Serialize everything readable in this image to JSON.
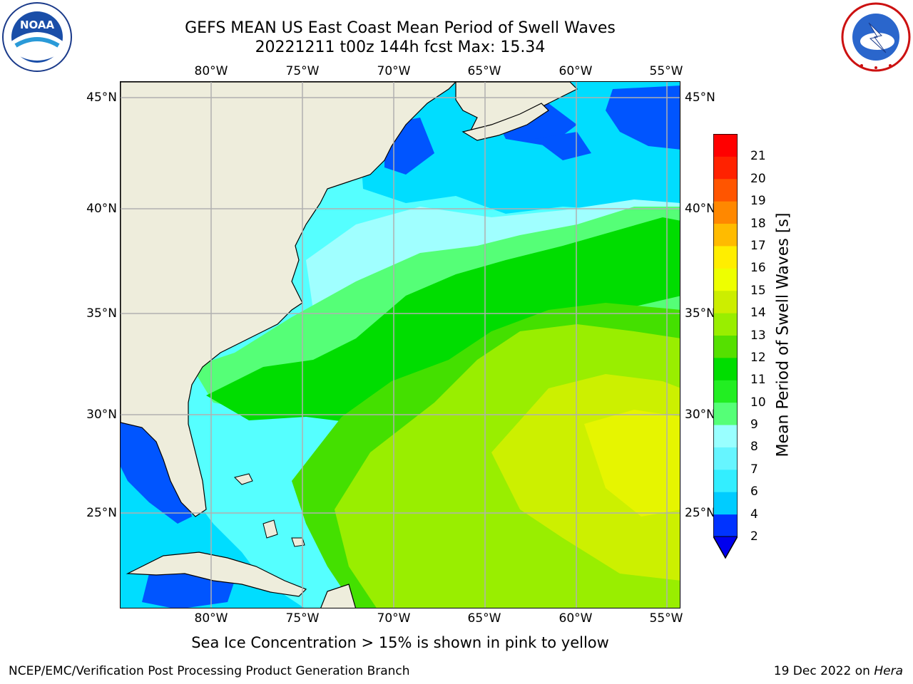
{
  "title": {
    "line1": "GEFS MEAN US East Coast Mean Period of Swell Waves",
    "line2": "20221211 t00z 144h fcst   Max: 15.34"
  },
  "axes": {
    "lon_labels": [
      "80°W",
      "75°W",
      "70°W",
      "65°W",
      "60°W",
      "55°W"
    ],
    "lat_labels": [
      "45°N",
      "40°N",
      "35°N",
      "30°N",
      "25°N"
    ]
  },
  "colorbar": {
    "title": "Mean Period of Swell Waves [s]",
    "labels": [
      "2",
      "4",
      "6",
      "7",
      "8",
      "9",
      "10",
      "11",
      "12",
      "13",
      "14",
      "15",
      "16",
      "17",
      "18",
      "19",
      "20",
      "21"
    ],
    "colors": [
      "#0033ff",
      "#00ccff",
      "#33eeff",
      "#66f5ff",
      "#99ffff",
      "#55ff77",
      "#22ee22",
      "#00dd00",
      "#55e000",
      "#99ee00",
      "#ccee00",
      "#eeff00",
      "#ffee00",
      "#ffbb00",
      "#ff8800",
      "#ff5500",
      "#ff2200",
      "#ff0000"
    ],
    "extend_below_color": "#0000ee"
  },
  "map": {
    "land_color": "#eeeddc",
    "ocean_colors": {
      "period_2_4": "#0055ff",
      "period_4_6": "#00ddff",
      "period_6_8": "#55ffff",
      "period_8_9": "#a0ffff",
      "period_9_10": "#55ff77",
      "period_10_11": "#00dd00",
      "period_11_12": "#44e000",
      "period_12_13": "#99ee00",
      "period_13_14": "#ccf000",
      "period_14_15": "#e6f500"
    },
    "grid_color": "#b0b0b0"
  },
  "caption": "Sea Ice Concentration > 15% is shown in pink to yellow",
  "footer": {
    "left": "NCEP/EMC/Verification Post Processing Product Generation Branch",
    "right_date": "19 Dec 2022 on ",
    "right_host": "Hera"
  },
  "logos": {
    "noaa_text": "NOAA",
    "nws_text": "NATIONAL WEATHER SERVICE"
  }
}
